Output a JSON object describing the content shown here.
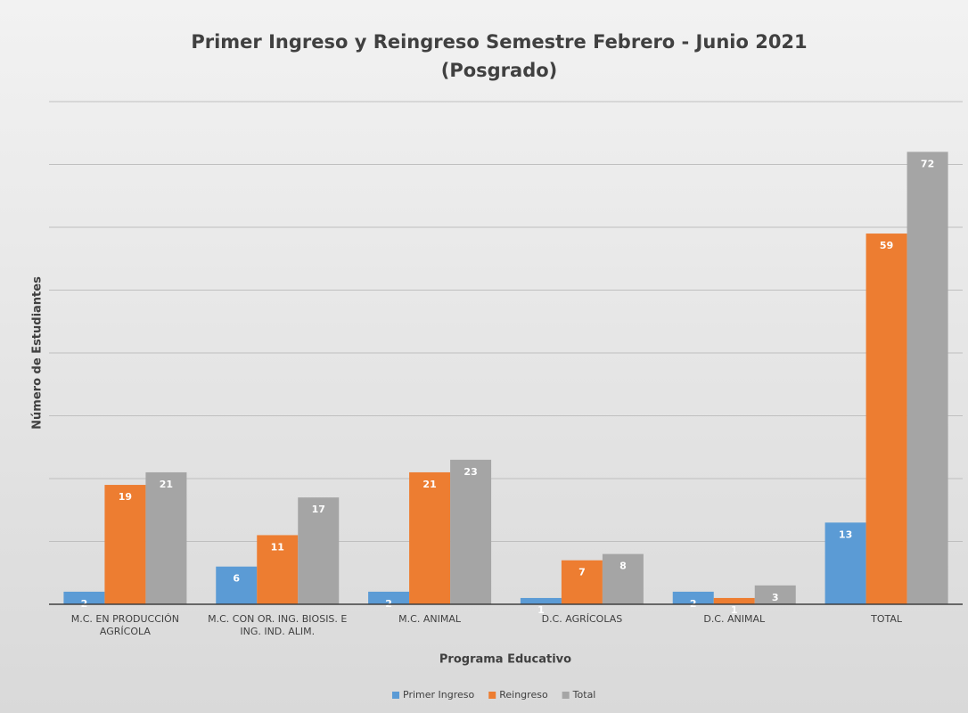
{
  "chart_data": {
    "type": "bar",
    "title": "Primer Ingreso y Reingreso Semestre Febrero - Junio 2021",
    "subtitle": "(Posgrado)",
    "x_label": "Programa Educativo",
    "y_label": "Número de Estudiantes",
    "categories": [
      "M.C. EN PRODUCCIÓN AGRÍCOLA",
      "M.C. CON OR. ING. BIOSIS. E ING. IND. ALIM.",
      "M.C. ANIMAL",
      "D.C. AGRÍCOLAS",
      "D.C. ANIMAL",
      "TOTAL"
    ],
    "series": [
      {
        "name": "Primer Ingreso",
        "color": "#5b9bd5",
        "values": [
          2,
          6,
          2,
          1,
          2,
          13
        ]
      },
      {
        "name": "Reingreso",
        "color": "#ed7d31",
        "values": [
          19,
          11,
          21,
          7,
          1,
          59
        ]
      },
      {
        "name": "Total",
        "color": "#a5a5a5",
        "values": [
          21,
          17,
          23,
          8,
          3,
          72
        ]
      }
    ],
    "ylim": [
      0,
      80
    ],
    "yticks": [
      0,
      10,
      20,
      30,
      40,
      50,
      60,
      70,
      80
    ],
    "grid": true,
    "legend": "bottom"
  }
}
